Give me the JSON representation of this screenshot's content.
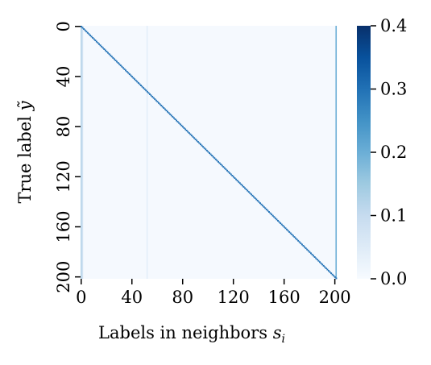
{
  "chart_data": {
    "type": "heatmap",
    "title": "",
    "xlabel": "Labels in neighbors",
    "xlabel_symbol": "s",
    "xlabel_subscript": "i",
    "ylabel": "True label",
    "ylabel_symbol": "ỹ",
    "matrix_size": 202,
    "x_range": [
      0,
      202
    ],
    "y_range": [
      0,
      202
    ],
    "x_ticks": [
      0,
      40,
      80,
      120,
      160,
      200
    ],
    "x_tick_labels": [
      "0",
      "40",
      "80",
      "120",
      "160",
      "200"
    ],
    "y_ticks": [
      0,
      40,
      80,
      120,
      160,
      200
    ],
    "y_tick_labels": [
      "0",
      "40",
      "80",
      "120",
      "160",
      "200"
    ],
    "y_inverted": true,
    "colorscale": "Blues",
    "colorbar": {
      "min": 0.0,
      "max": 0.4,
      "ticks": [
        0.0,
        0.1,
        0.2,
        0.3,
        0.4
      ],
      "tick_labels": [
        "0.0",
        "0.1",
        "0.2",
        "0.3",
        "0.4"
      ]
    },
    "background_value": 0.005,
    "diagonal_value": 0.3,
    "high_columns": [
      {
        "column": 0,
        "value": 0.12
      },
      {
        "column": 1,
        "value": 0.08
      },
      {
        "column": 52,
        "value": 0.04
      },
      {
        "column": 201,
        "value": 0.2
      }
    ],
    "grid": false,
    "legend": "colorbar-right"
  }
}
